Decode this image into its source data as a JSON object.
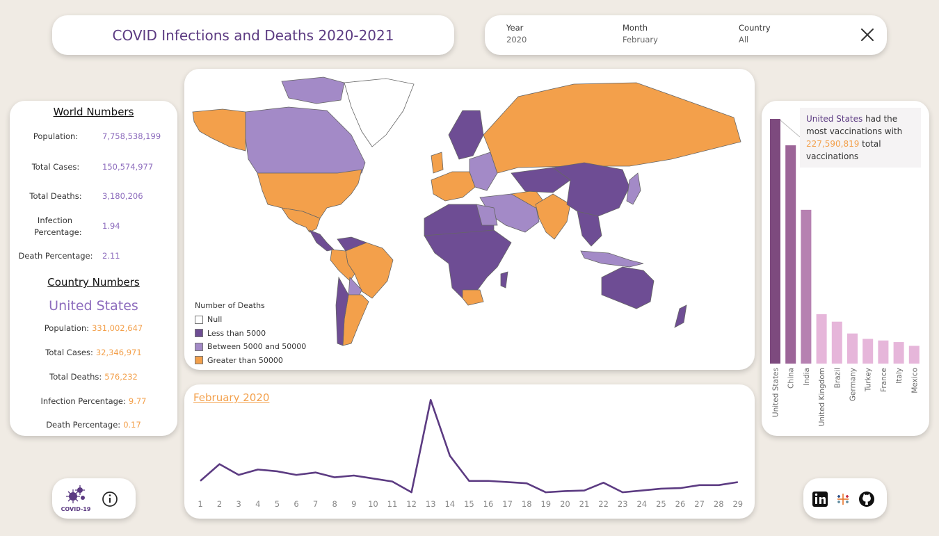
{
  "title": "COVID Infections and Deaths 2020-2021",
  "filters": [
    {
      "label": "Year",
      "value": "2020"
    },
    {
      "label": "Month",
      "value": "February"
    },
    {
      "label": "Country",
      "value": "All"
    }
  ],
  "world": {
    "heading": "World Numbers",
    "stats": [
      {
        "label": "Population:",
        "value": "7,758,538,199"
      },
      {
        "label": "Total Cases:",
        "value": "150,574,977"
      },
      {
        "label": "Total Deaths:",
        "value": "3,180,206"
      },
      {
        "label": "Infection Percentage:",
        "value": "1.94"
      },
      {
        "label": "Death Percentage:",
        "value": "2.11"
      }
    ]
  },
  "country": {
    "heading": "Country Numbers",
    "name": "United States",
    "stats": [
      {
        "label": "Population:",
        "value": "331,002,647"
      },
      {
        "label": "Total Cases:",
        "value": "32,346,971"
      },
      {
        "label": "Total Deaths:",
        "value": "576,232"
      },
      {
        "label": "Infection Percentage:",
        "value": "9.77"
      },
      {
        "label": "Death Percentage:",
        "value": "0.17"
      }
    ]
  },
  "map": {
    "legend_title": "Number of Deaths",
    "legend": [
      {
        "label": "Null",
        "color": "#ffffff"
      },
      {
        "label": "Less than 5000",
        "color": "#6e4d94"
      },
      {
        "label": "Between 5000 and 50000",
        "color": "#a38ac7"
      },
      {
        "label": "Greater than 50000",
        "color": "#f3a04b"
      }
    ]
  },
  "tooltip": {
    "country": "United States",
    "text1": " had the most vaccinations with ",
    "value": "227,590,819",
    "text2": " total vaccinations"
  },
  "line_title": "February 2020",
  "colors": {
    "purple": "#5c3b82",
    "orange": "#f3a04b",
    "lavender": "#8d6cbd"
  },
  "chart_data": [
    {
      "type": "bar",
      "categories": [
        "United States",
        "China",
        "India",
        "United Kingdom",
        "Brazil",
        "Germany",
        "Turkey",
        "France",
        "Italy",
        "Mexico"
      ],
      "values": [
        227590819,
        203000000,
        143000000,
        46000000,
        39000000,
        28000000,
        23000000,
        21500000,
        20000000,
        16500000
      ],
      "colors": [
        "#7d4a7e",
        "#9c6598",
        "#b681b1",
        "#e6b6da",
        "#e6b6da",
        "#e6b6da",
        "#e6b6da",
        "#e6b6da",
        "#e6b6da",
        "#e6b6da"
      ],
      "ylim": [
        0,
        227590819
      ]
    },
    {
      "type": "line",
      "x": [
        1,
        2,
        3,
        4,
        5,
        6,
        7,
        8,
        9,
        10,
        11,
        12,
        13,
        14,
        15,
        16,
        17,
        18,
        19,
        20,
        21,
        22,
        23,
        24,
        25,
        26,
        27,
        28,
        29
      ],
      "values": [
        20,
        48,
        30,
        39,
        36,
        30,
        34,
        26,
        29,
        24,
        19,
        1,
        155,
        62,
        20,
        20,
        18,
        16,
        1,
        3,
        4,
        17,
        1,
        4,
        7,
        8,
        13,
        13,
        18
      ],
      "ylim": [
        0,
        160
      ]
    }
  ]
}
